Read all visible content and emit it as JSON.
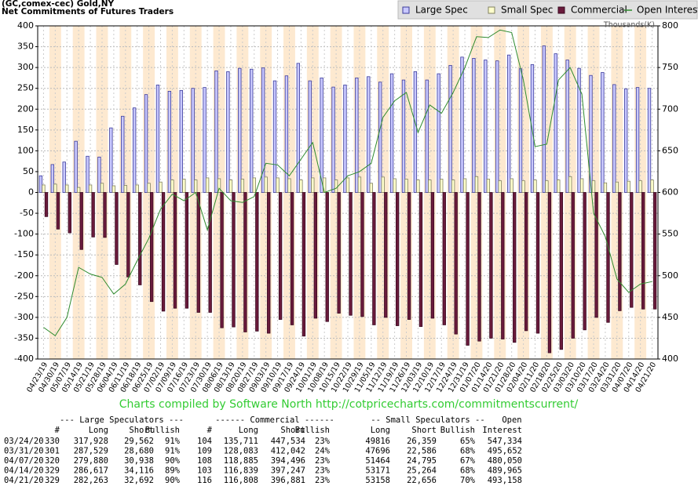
{
  "chart_data": {
    "type": "bar",
    "title": "(GC,comex-cec) Gold,NY",
    "subtitle": "Net Commitments of Futures Traders",
    "y2label": "Thousands(K)",
    "credit": "Charts compiled by Software North  http://cotpricecharts.com/commitmentscurrent/",
    "categories": [
      "04/23/19",
      "04/30/19",
      "05/07/19",
      "05/14/19",
      "05/21/19",
      "05/28/19",
      "06/04/19",
      "06/11/19",
      "06/18/19",
      "06/25/19",
      "07/02/19",
      "07/09/19",
      "07/16/19",
      "07/23/19",
      "07/30/19",
      "08/06/19",
      "08/13/19",
      "08/20/19",
      "08/27/19",
      "09/03/19",
      "09/10/19",
      "09/17/19",
      "09/24/19",
      "10/01/19",
      "10/08/19",
      "10/15/19",
      "10/22/19",
      "10/29/19",
      "11/05/19",
      "11/12/19",
      "11/19/19",
      "11/26/19",
      "12/03/19",
      "12/10/19",
      "12/17/19",
      "12/24/19",
      "12/31/19",
      "01/07/20",
      "01/14/20",
      "01/21/20",
      "01/28/20",
      "02/04/20",
      "02/11/20",
      "02/18/20",
      "02/25/20",
      "03/03/20",
      "03/10/20",
      "03/17/20",
      "03/24/20",
      "03/31/20",
      "04/07/20",
      "04/14/20",
      "04/21/20"
    ],
    "series": [
      {
        "name": "Large Spec",
        "color": "#c8c8ff",
        "stroke": "#3a3a9a",
        "values": [
          40,
          67,
          73,
          123,
          87,
          85,
          155,
          183,
          203,
          235,
          258,
          243,
          245,
          250,
          252,
          292,
          290,
          298,
          296,
          299,
          268,
          280,
          310,
          268,
          275,
          253,
          258,
          275,
          278,
          265,
          285,
          270,
          290,
          270,
          285,
          305,
          325,
          322,
          318,
          316,
          330,
          297,
          307,
          352,
          333,
          318,
          298,
          281,
          288,
          259,
          249,
          252,
          250
        ]
      },
      {
        "name": "Small Spec",
        "color": "#ffffcc",
        "stroke": "#808060",
        "values": [
          18,
          20,
          18,
          12,
          18,
          22,
          16,
          17,
          18,
          22,
          25,
          30,
          32,
          30,
          35,
          33,
          30,
          32,
          35,
          37,
          35,
          33,
          30,
          35,
          35,
          30,
          35,
          37,
          22,
          37,
          33,
          32,
          30,
          30,
          32,
          30,
          33,
          38,
          32,
          28,
          33,
          28,
          30,
          28,
          30,
          38,
          33,
          28,
          23,
          25,
          27,
          28,
          30
        ]
      },
      {
        "name": "Commercial",
        "color": "#6a1b3c",
        "stroke": "#3a0a20",
        "values": [
          -58,
          -88,
          -97,
          -137,
          -107,
          -108,
          -173,
          -203,
          -222,
          -262,
          -285,
          -278,
          -278,
          -288,
          -288,
          -325,
          -323,
          -335,
          -333,
          -338,
          -305,
          -318,
          -345,
          -302,
          -310,
          -290,
          -295,
          -298,
          -318,
          -300,
          -320,
          -305,
          -322,
          -302,
          -318,
          -340,
          -367,
          -357,
          -350,
          -352,
          -360,
          -332,
          -338,
          -385,
          -377,
          -350,
          -330,
          -300,
          -312,
          -284,
          -276,
          -280,
          -280
        ]
      },
      {
        "name": "Open Interest",
        "color": "#2e8b2e",
        "type": "line",
        "axis": "y2",
        "values": [
          438,
          428,
          450,
          510,
          502,
          498,
          478,
          490,
          518,
          545,
          580,
          598,
          590,
          600,
          555,
          605,
          590,
          588,
          595,
          635,
          633,
          620,
          640,
          660,
          600,
          605,
          620,
          625,
          635,
          690,
          710,
          720,
          672,
          705,
          695,
          720,
          750,
          787,
          786,
          795,
          792,
          735,
          655,
          658,
          735,
          750,
          718,
          575,
          547,
          496,
          480,
          490,
          493
        ]
      }
    ],
    "ylim": [
      -400,
      400
    ],
    "yticks": [
      -400,
      -350,
      -300,
      -250,
      -200,
      -150,
      -100,
      -50,
      0,
      50,
      100,
      150,
      200,
      250,
      300,
      350,
      400
    ],
    "y2lim": [
      400,
      800
    ],
    "y2ticks": [
      400,
      450,
      500,
      550,
      600,
      650,
      700,
      750,
      800
    ],
    "grid": true
  },
  "table": {
    "group_headers": [
      "--- Large Speculators ---",
      "------ Commercial ------",
      "-- Small Speculators --",
      "Open"
    ],
    "columns": [
      "#",
      "Long",
      "Short",
      "Bullish",
      "#",
      "Long",
      "Short",
      "Bullish",
      "Long",
      "Short",
      "Bullish",
      "Interest"
    ],
    "rows": [
      [
        "03/24/20",
        "330",
        "317,928",
        "29,562",
        "91%",
        "104",
        "135,711",
        "447,534",
        "23%",
        "49816",
        "26,359",
        "65%",
        "547,334"
      ],
      [
        "03/31/20",
        "301",
        "287,529",
        "28,680",
        "91%",
        "109",
        "128,083",
        "412,042",
        "24%",
        "47696",
        "22,586",
        "68%",
        "495,652"
      ],
      [
        "04/07/20",
        "320",
        "279,880",
        "30,938",
        "90%",
        "108",
        "118,885",
        "394,496",
        "23%",
        "51464",
        "24,795",
        "67%",
        "480,050"
      ],
      [
        "04/14/20",
        "329",
        "286,617",
        "34,116",
        "89%",
        "103",
        "116,839",
        "397,247",
        "23%",
        "53171",
        "25,264",
        "68%",
        "489,965"
      ],
      [
        "04/21/20",
        "329",
        "282,263",
        "32,692",
        "90%",
        "116",
        "116,808",
        "396,881",
        "23%",
        "53158",
        "22,656",
        "70%",
        "493,158"
      ]
    ]
  }
}
